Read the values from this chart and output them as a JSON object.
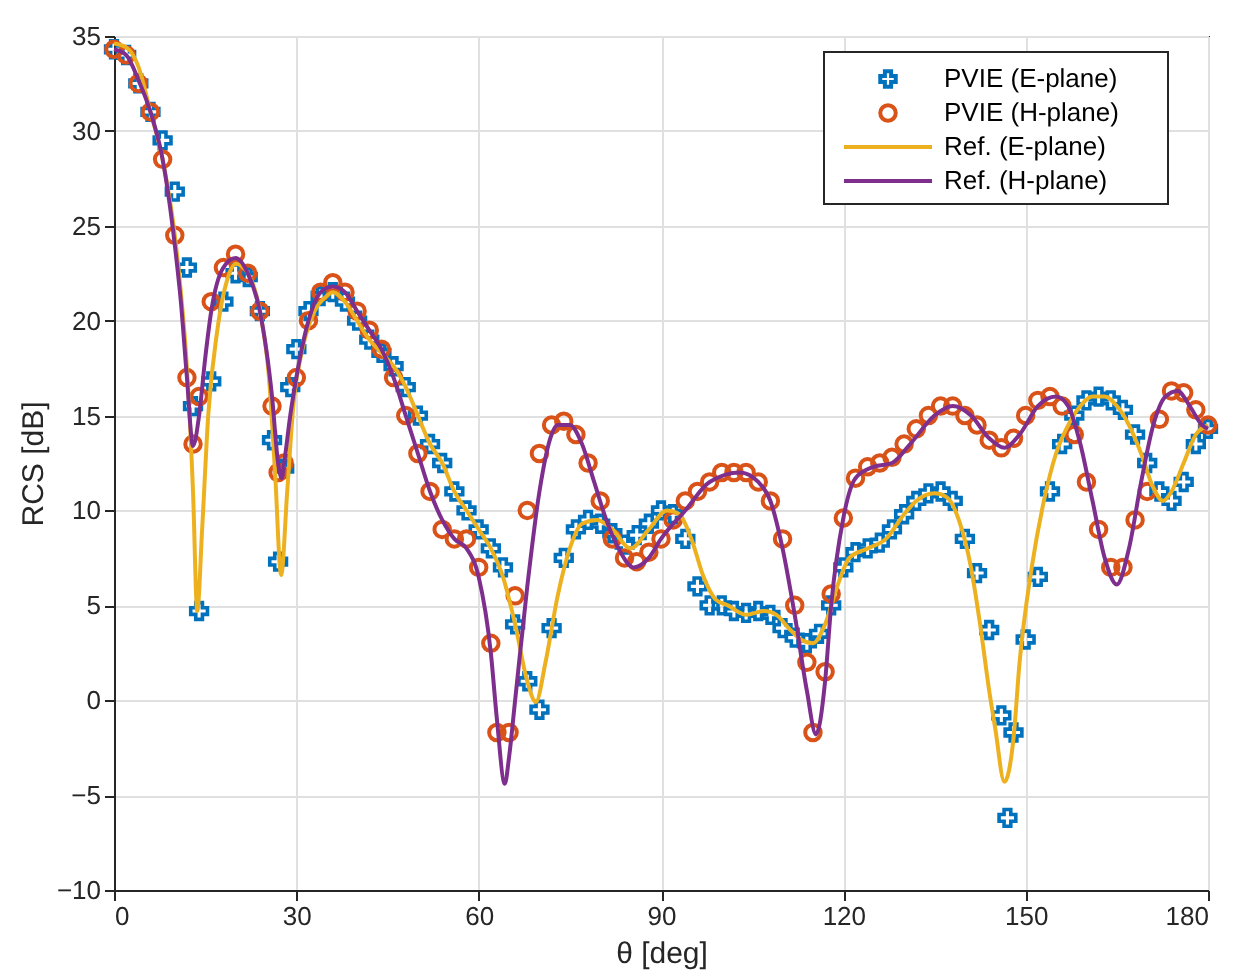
{
  "chart_data": {
    "type": "line",
    "xlabel": "θ [deg]",
    "ylabel": "RCS [dB]",
    "xlim": [
      0,
      180
    ],
    "xticks": [
      0,
      30,
      60,
      90,
      120,
      150,
      180
    ],
    "ylim": [
      -10,
      35
    ],
    "yticks": [
      -10,
      -5,
      0,
      5,
      10,
      15,
      20,
      25,
      30,
      35
    ],
    "grid": true,
    "legend": "top right",
    "series": [
      {
        "name": "PVIE (E-plane)",
        "type": "scatter",
        "marker": "cross",
        "color": "#0072bd",
        "x": [
          0,
          2,
          4,
          6,
          8,
          10,
          12,
          13,
          14,
          16,
          18,
          20,
          22,
          24,
          26,
          27,
          28,
          29,
          30,
          32,
          34,
          36,
          38,
          40,
          42,
          44,
          46,
          48,
          50,
          52,
          54,
          56,
          58,
          60,
          62,
          64,
          66,
          68,
          70,
          72,
          74,
          76,
          78,
          80,
          82,
          84,
          86,
          88,
          90,
          92,
          94,
          96,
          98,
          100,
          102,
          104,
          106,
          108,
          110,
          112,
          114,
          116,
          118,
          120,
          122,
          124,
          126,
          128,
          130,
          132,
          134,
          136,
          138,
          140,
          142,
          144,
          146,
          147,
          148,
          150,
          152,
          154,
          156,
          158,
          160,
          162,
          164,
          166,
          168,
          170,
          172,
          174,
          176,
          178,
          180
        ],
        "values": [
          34.3,
          34,
          32.5,
          31,
          29.5,
          26.8,
          22.8,
          15.5,
          4.7,
          16.8,
          21,
          22.5,
          22.3,
          20.5,
          13.7,
          7.3,
          12.2,
          16.5,
          18.5,
          20.5,
          21.3,
          21.5,
          21,
          20,
          19,
          18.3,
          17.6,
          16.5,
          15,
          13.5,
          12.5,
          11,
          10,
          9,
          8,
          7,
          4,
          1,
          -0.5,
          3.8,
          7.5,
          9,
          9.5,
          9.3,
          8.8,
          8.2,
          8.7,
          9.3,
          10,
          9.8,
          8.5,
          6,
          5,
          5,
          4.7,
          4.6,
          4.7,
          4.5,
          3.8,
          3.3,
          3,
          3.5,
          5,
          7,
          7.8,
          8,
          8.3,
          9,
          9.8,
          10.5,
          10.9,
          11,
          10.5,
          8.5,
          6.7,
          3.7,
          -0.8,
          -6.2,
          -1.7,
          3.2,
          6.5,
          11,
          13.5,
          15,
          15.8,
          16,
          15.8,
          15.3,
          14,
          12.5,
          11,
          10.5,
          11.5,
          13.5,
          14.3
        ]
      },
      {
        "name": "PVIE (H-plane)",
        "type": "scatter",
        "marker": "circle",
        "color": "#d95319",
        "x": [
          0,
          2,
          4,
          6,
          8,
          10,
          12,
          13,
          14,
          16,
          18,
          20,
          22,
          24,
          26,
          27,
          28,
          30,
          32,
          34,
          36,
          38,
          40,
          42,
          44,
          46,
          48,
          50,
          52,
          54,
          56,
          58,
          60,
          62,
          63,
          65,
          66,
          68,
          70,
          72,
          74,
          76,
          78,
          80,
          82,
          84,
          86,
          88,
          90,
          92,
          94,
          96,
          98,
          100,
          102,
          104,
          106,
          108,
          110,
          112,
          114,
          115,
          117,
          118,
          120,
          122,
          124,
          126,
          128,
          130,
          132,
          134,
          136,
          138,
          140,
          142,
          144,
          146,
          148,
          150,
          152,
          154,
          156,
          158,
          160,
          162,
          164,
          166,
          168,
          170,
          172,
          174,
          176,
          178,
          180
        ],
        "values": [
          34.3,
          34,
          32.5,
          31,
          28.5,
          24.5,
          17,
          13.5,
          16,
          21,
          22.8,
          23.5,
          22.5,
          20.5,
          15.5,
          12,
          12.5,
          17,
          20,
          21.5,
          22,
          21.5,
          20.5,
          19.5,
          18.5,
          17,
          15,
          13,
          11,
          9,
          8.5,
          8.5,
          7,
          3,
          -1.7,
          -1.7,
          5.5,
          10,
          13,
          14.5,
          14.7,
          14,
          12.5,
          10.5,
          8.5,
          7.5,
          7.3,
          7.8,
          8.5,
          9.5,
          10.5,
          11,
          11.5,
          12,
          12,
          12,
          11.5,
          10.5,
          8.5,
          5,
          2,
          -1.7,
          1.5,
          5.6,
          9.6,
          11.7,
          12.3,
          12.5,
          12.8,
          13.5,
          14.3,
          15,
          15.5,
          15.5,
          15,
          14.5,
          13.7,
          13.3,
          13.8,
          15,
          15.8,
          16,
          15.5,
          14,
          11.5,
          9,
          7,
          7,
          9.5,
          11,
          14.8,
          16.3,
          16.2,
          15.3,
          14.5
        ]
      },
      {
        "name": "Ref. (E-plane)",
        "color": "#edb120",
        "x": [
          0,
          2,
          4,
          6,
          8,
          10,
          11,
          12,
          13,
          13.7,
          14.5,
          15.5,
          17,
          19,
          20,
          22,
          24,
          25.5,
          26.5,
          27.5,
          28.5,
          29.5,
          31,
          33,
          35,
          36,
          38,
          40,
          42,
          44,
          46,
          48,
          50,
          52,
          54,
          56,
          58,
          60,
          62,
          64,
          66,
          68,
          69.4,
          71,
          73,
          75,
          77,
          79.5,
          82,
          85,
          88,
          91,
          93,
          95,
          97,
          99,
          101,
          104,
          107,
          109,
          111,
          113,
          115,
          117,
          119,
          121,
          124,
          127,
          130,
          132,
          135,
          137,
          139,
          141,
          142.5,
          144,
          145,
          146.5,
          148,
          149,
          151,
          153,
          155,
          157,
          159,
          161,
          163,
          165,
          167,
          169,
          171,
          172.6,
          174,
          176,
          178,
          180
        ],
        "values": [
          34.6,
          34.4,
          33.4,
          31,
          28.5,
          24.5,
          21.5,
          17.5,
          11,
          4.7,
          9,
          15,
          19.5,
          22.5,
          23,
          22.5,
          20.5,
          17,
          12,
          6.6,
          11,
          15.5,
          18.5,
          20.5,
          21.3,
          21.5,
          21,
          20,
          19,
          18.3,
          17.6,
          16.5,
          15,
          13.5,
          12.5,
          11,
          10,
          9,
          8,
          6.5,
          4,
          1,
          -0.1,
          2,
          5.5,
          8,
          9.3,
          9.5,
          9,
          8,
          9,
          10,
          9.8,
          8.5,
          6.5,
          5.3,
          5,
          4.5,
          4.7,
          4.5,
          3.8,
          3.2,
          3,
          4,
          6,
          7.5,
          8,
          8.5,
          9.8,
          10.5,
          10.9,
          10.7,
          9.5,
          7,
          4,
          0.5,
          -1.5,
          -4.3,
          -2,
          2,
          7,
          10.5,
          13,
          14.5,
          15.5,
          16,
          16,
          15.5,
          14.5,
          13,
          11.2,
          10.5,
          11,
          12.5,
          14,
          14.5
        ]
      },
      {
        "name": "Ref. (H-plane)",
        "color": "#7e2f8e",
        "x": [
          0,
          2,
          4,
          6,
          8,
          10,
          11,
          12,
          13,
          14,
          15,
          16,
          18,
          20,
          22,
          24,
          26,
          27,
          27.6,
          28,
          29,
          30,
          32,
          34,
          36,
          38,
          40,
          42,
          44,
          46,
          48,
          50,
          52,
          54,
          56,
          58,
          60,
          62,
          63,
          64.3,
          65,
          66,
          68,
          70,
          72,
          73,
          75,
          77,
          79,
          81,
          83,
          85.5,
          88,
          90,
          94,
          98,
          103,
          106,
          108,
          110,
          112,
          114,
          115.5,
          117,
          118,
          120,
          122,
          125,
          128,
          131,
          135,
          138,
          141,
          144,
          146.5,
          149,
          152,
          155,
          157,
          159,
          161,
          163,
          165,
          167,
          169,
          171,
          173,
          175,
          177,
          179,
          180
        ],
        "values": [
          34.3,
          34,
          32.7,
          31,
          28.5,
          24,
          21,
          17,
          13.4,
          15,
          18,
          20.5,
          22.8,
          23.3,
          22.5,
          20.5,
          16,
          12.5,
          11.7,
          12.5,
          15,
          17,
          20,
          21.5,
          21.8,
          21.5,
          20.5,
          19.5,
          18.5,
          17,
          15,
          13,
          11,
          9.5,
          8.5,
          8,
          6.5,
          2.5,
          -1,
          -4.4,
          -3,
          0,
          6,
          11,
          14,
          14.5,
          14.5,
          13.5,
          11.5,
          9.5,
          8,
          7,
          7.5,
          8.5,
          10,
          11.5,
          12,
          11.5,
          10.5,
          8,
          4.5,
          0.5,
          -1.8,
          1,
          5,
          9.6,
          11.7,
          12.3,
          12.5,
          13.5,
          15,
          15.5,
          15,
          13.8,
          13.3,
          14,
          15.5,
          16,
          15.5,
          13.5,
          10.5,
          7.5,
          6.1,
          8,
          11.5,
          14.5,
          16,
          16.3,
          15.5,
          14.5,
          14.3
        ]
      }
    ]
  }
}
